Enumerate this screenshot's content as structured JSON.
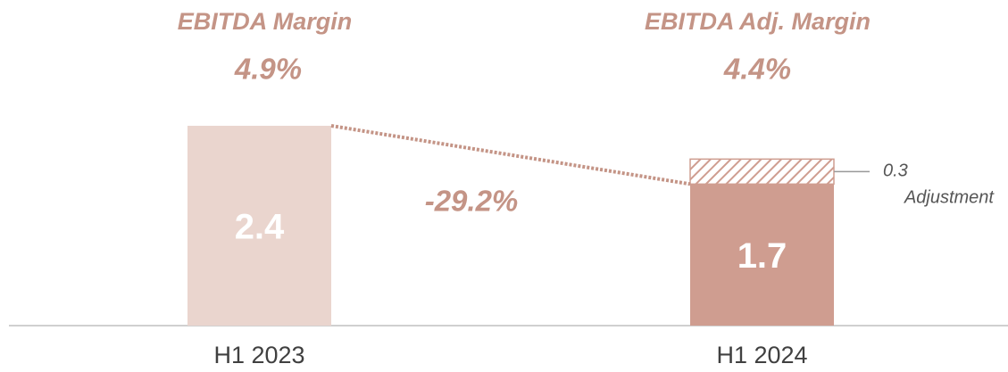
{
  "chart_data": {
    "type": "bar",
    "categories": [
      "H1 2023",
      "H1 2024"
    ],
    "values": [
      2.4,
      1.7
    ],
    "colors": [
      "#ead5ce",
      "#cf9d90"
    ],
    "adjustment": {
      "name": "Adjustment",
      "value": 0.3,
      "color": "#cf9d90"
    },
    "ylim": [
      0,
      2.7
    ],
    "margins": [
      {
        "label": "EBITDA Margin",
        "value_label": "4.9%"
      },
      {
        "label": "EBITDA Adj. Margin",
        "value_label": "4.4%"
      }
    ],
    "change": "-29.2%"
  }
}
